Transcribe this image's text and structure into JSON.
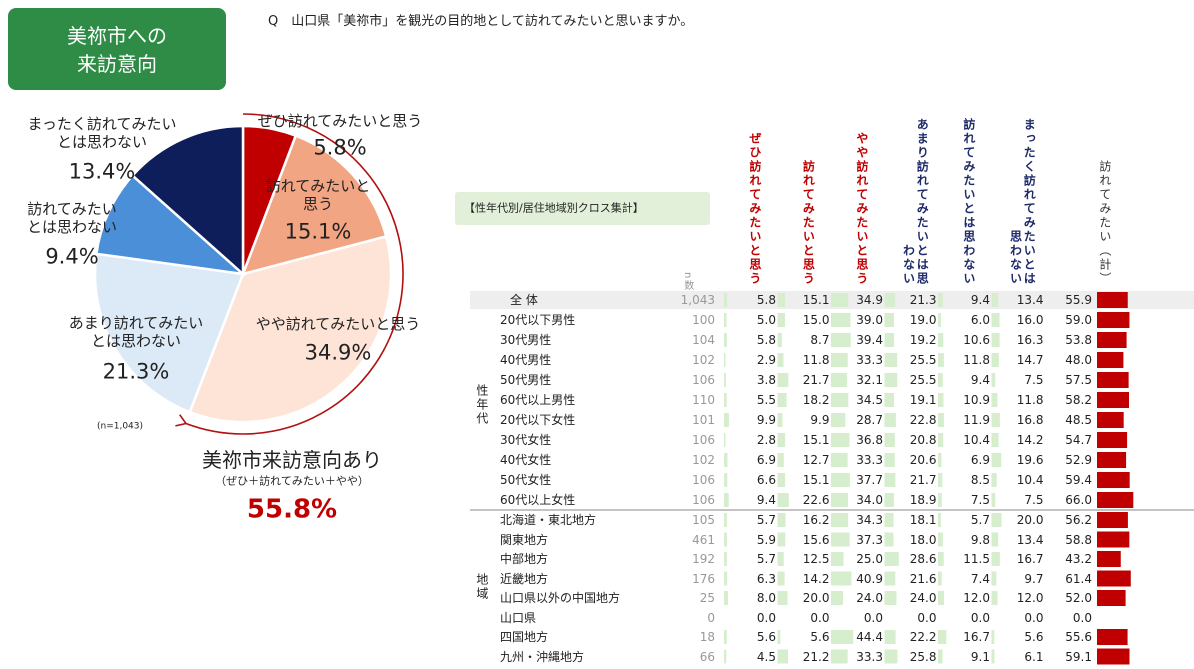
{
  "badge": [
    "美祢市への",
    "来訪意向"
  ],
  "question": "Q　山口県「美祢市」を観光の目的地として訪れてみたいと思いますか。",
  "chart_data": {
    "type": "pie",
    "categories": [
      "ぜひ訪れてみたいと思う",
      "訪れてみたいと\n思う",
      "やや訪れてみたいと思う",
      "あまり訪れてみたい\nとは思わない",
      "訪れてみたい\nとは思わない",
      "まったく訪れてみたい\nとは思わない"
    ],
    "values": [
      5.8,
      15.1,
      34.9,
      21.3,
      9.4,
      13.4
    ],
    "value_labels": [
      "5.8%",
      "15.1%",
      "34.9%",
      "21.3%",
      "9.4%",
      "13.4%"
    ],
    "colors": [
      "#c00000",
      "#f2a582",
      "#fde4d6",
      "#dce9f6",
      "#4a8fd8",
      "#0d1e5a"
    ],
    "note": "(n=1,043)",
    "total_title": "美祢市来訪意向あり",
    "total_subtitle": "（ぜひ＋訪れてみたい＋やや）",
    "total": 55.8,
    "total_label": "55.8%"
  },
  "table": {
    "title": "【性年代別/居住地域別クロス集計】",
    "n_header": "n数",
    "columns": [
      "ぜひ訪れてみたいと思う",
      "訪れてみたいと思う",
      "やや訪れてみたいと思う",
      "あまり訪れてみたいとは思わない",
      "訪れてみたいとは思わない",
      "まったく訪れてみたいとは思わない"
    ],
    "total_header": "訪れてみたい（計）",
    "groups": [
      "性年代",
      "地域"
    ],
    "rows": [
      {
        "label": "全 体",
        "n": "1,043",
        "values": [
          "5.8",
          "15.1",
          "34.9",
          "21.3",
          "9.4",
          "13.4"
        ],
        "total": "55.9"
      },
      {
        "label": "20代以下男性",
        "n": "100",
        "values": [
          "5.0",
          "15.0",
          "39.0",
          "19.0",
          "6.0",
          "16.0"
        ],
        "total": "59.0"
      },
      {
        "label": "30代男性",
        "n": "104",
        "values": [
          "5.8",
          "8.7",
          "39.4",
          "19.2",
          "10.6",
          "16.3"
        ],
        "total": "53.8"
      },
      {
        "label": "40代男性",
        "n": "102",
        "values": [
          "2.9",
          "11.8",
          "33.3",
          "25.5",
          "11.8",
          "14.7"
        ],
        "total": "48.0"
      },
      {
        "label": "50代男性",
        "n": "106",
        "values": [
          "3.8",
          "21.7",
          "32.1",
          "25.5",
          "9.4",
          "7.5"
        ],
        "total": "57.5"
      },
      {
        "label": "60代以上男性",
        "n": "110",
        "values": [
          "5.5",
          "18.2",
          "34.5",
          "19.1",
          "10.9",
          "11.8"
        ],
        "total": "58.2"
      },
      {
        "label": "20代以下女性",
        "n": "101",
        "values": [
          "9.9",
          "9.9",
          "28.7",
          "22.8",
          "11.9",
          "16.8"
        ],
        "total": "48.5"
      },
      {
        "label": "30代女性",
        "n": "106",
        "values": [
          "2.8",
          "15.1",
          "36.8",
          "20.8",
          "10.4",
          "14.2"
        ],
        "total": "54.7"
      },
      {
        "label": "40代女性",
        "n": "102",
        "values": [
          "6.9",
          "12.7",
          "33.3",
          "20.6",
          "6.9",
          "19.6"
        ],
        "total": "52.9"
      },
      {
        "label": "50代女性",
        "n": "106",
        "values": [
          "6.6",
          "15.1",
          "37.7",
          "21.7",
          "8.5",
          "10.4"
        ],
        "total": "59.4"
      },
      {
        "label": "60代以上女性",
        "n": "106",
        "values": [
          "9.4",
          "22.6",
          "34.0",
          "18.9",
          "7.5",
          "7.5"
        ],
        "total": "66.0"
      },
      {
        "label": "北海道・東北地方",
        "n": "105",
        "values": [
          "5.7",
          "16.2",
          "34.3",
          "18.1",
          "5.7",
          "20.0"
        ],
        "total": "56.2"
      },
      {
        "label": "関東地方",
        "n": "461",
        "values": [
          "5.9",
          "15.6",
          "37.3",
          "18.0",
          "9.8",
          "13.4"
        ],
        "total": "58.8"
      },
      {
        "label": "中部地方",
        "n": "192",
        "values": [
          "5.7",
          "12.5",
          "25.0",
          "28.6",
          "11.5",
          "16.7"
        ],
        "total": "43.2"
      },
      {
        "label": "近畿地方",
        "n": "176",
        "values": [
          "6.3",
          "14.2",
          "40.9",
          "21.6",
          "7.4",
          "9.7"
        ],
        "total": "61.4"
      },
      {
        "label": "山口県以外の中国地方",
        "n": "25",
        "values": [
          "8.0",
          "20.0",
          "24.0",
          "24.0",
          "12.0",
          "12.0"
        ],
        "total": "52.0"
      },
      {
        "label": "山口県",
        "n": "0",
        "values": [
          "0.0",
          "0.0",
          "0.0",
          "0.0",
          "0.0",
          "0.0"
        ],
        "total": "0.0"
      },
      {
        "label": "四国地方",
        "n": "18",
        "values": [
          "5.6",
          "5.6",
          "44.4",
          "22.2",
          "16.7",
          "5.6"
        ],
        "total": "55.6"
      },
      {
        "label": "九州・沖縄地方",
        "n": "66",
        "values": [
          "4.5",
          "21.2",
          "33.3",
          "25.8",
          "9.1",
          "6.1"
        ],
        "total": "59.1"
      }
    ]
  }
}
